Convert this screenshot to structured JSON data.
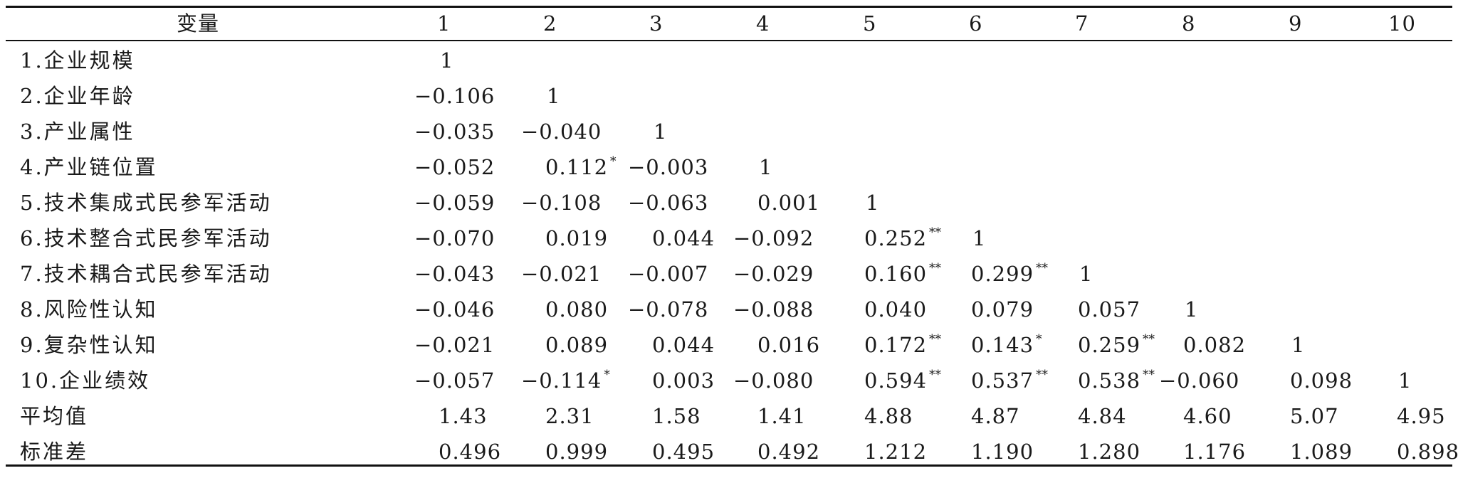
{
  "table": {
    "headers": [
      "变量",
      "1",
      "2",
      "3",
      "4",
      "5",
      "6",
      "7",
      "8",
      "9",
      "10"
    ],
    "rows": [
      {
        "label": "1.企业规模",
        "cells": [
          [
            "1",
            ""
          ]
        ]
      },
      {
        "label": "2.企业年龄",
        "cells": [
          [
            "−0.106",
            ""
          ],
          [
            "1",
            ""
          ]
        ]
      },
      {
        "label": "3.产业属性",
        "cells": [
          [
            "−0.035",
            ""
          ],
          [
            "−0.040",
            ""
          ],
          [
            "1",
            ""
          ]
        ]
      },
      {
        "label": "4.产业链位置",
        "cells": [
          [
            "−0.052",
            ""
          ],
          [
            "0.112",
            "*"
          ],
          [
            "−0.003",
            ""
          ],
          [
            "1",
            ""
          ]
        ]
      },
      {
        "label": "5.技术集成式民参军活动",
        "cells": [
          [
            "−0.059",
            ""
          ],
          [
            "−0.108",
            ""
          ],
          [
            "−0.063",
            ""
          ],
          [
            "0.001",
            ""
          ],
          [
            "1",
            ""
          ]
        ]
      },
      {
        "label": "6.技术整合式民参军活动",
        "cells": [
          [
            "−0.070",
            ""
          ],
          [
            "0.019",
            ""
          ],
          [
            "0.044",
            ""
          ],
          [
            "−0.092",
            ""
          ],
          [
            "0.252",
            "**"
          ],
          [
            "1",
            ""
          ]
        ]
      },
      {
        "label": "7.技术耦合式民参军活动",
        "cells": [
          [
            "−0.043",
            ""
          ],
          [
            "−0.021",
            ""
          ],
          [
            "−0.007",
            ""
          ],
          [
            "−0.029",
            ""
          ],
          [
            "0.160",
            "**"
          ],
          [
            "0.299",
            "**"
          ],
          [
            "1",
            ""
          ]
        ]
      },
      {
        "label": "8.风险性认知",
        "cells": [
          [
            "−0.046",
            ""
          ],
          [
            "0.080",
            ""
          ],
          [
            "−0.078",
            ""
          ],
          [
            "−0.088",
            ""
          ],
          [
            "0.040",
            ""
          ],
          [
            "0.079",
            ""
          ],
          [
            "0.057",
            ""
          ],
          [
            "1",
            ""
          ]
        ]
      },
      {
        "label": "9.复杂性认知",
        "cells": [
          [
            "−0.021",
            ""
          ],
          [
            "0.089",
            ""
          ],
          [
            "0.044",
            ""
          ],
          [
            "0.016",
            ""
          ],
          [
            "0.172",
            "**"
          ],
          [
            "0.143",
            "*"
          ],
          [
            "0.259",
            "**"
          ],
          [
            "0.082",
            ""
          ],
          [
            "1",
            ""
          ]
        ]
      },
      {
        "label": "10.企业绩效",
        "cells": [
          [
            "−0.057",
            ""
          ],
          [
            "−0.114",
            "*"
          ],
          [
            "0.003",
            ""
          ],
          [
            "−0.080",
            ""
          ],
          [
            "0.594",
            "**"
          ],
          [
            "0.537",
            "**"
          ],
          [
            "0.538",
            "**"
          ],
          [
            "−0.060",
            ""
          ],
          [
            "0.098",
            ""
          ],
          [
            "1",
            ""
          ]
        ]
      },
      {
        "label": "平均值",
        "cells": [
          [
            "1.43",
            ""
          ],
          [
            "2.31",
            ""
          ],
          [
            "1.58",
            ""
          ],
          [
            "1.41",
            ""
          ],
          [
            "4.88",
            ""
          ],
          [
            "4.87",
            ""
          ],
          [
            "4.84",
            ""
          ],
          [
            "4.60",
            ""
          ],
          [
            "5.07",
            ""
          ],
          [
            "4.95",
            ""
          ]
        ]
      },
      {
        "label": "标准差",
        "cells": [
          [
            "0.496",
            ""
          ],
          [
            "0.999",
            ""
          ],
          [
            "0.495",
            ""
          ],
          [
            "0.492",
            ""
          ],
          [
            "1.212",
            ""
          ],
          [
            "1.190",
            ""
          ],
          [
            "1.280",
            ""
          ],
          [
            "1.176",
            ""
          ],
          [
            "1.089",
            ""
          ],
          [
            "0.898",
            ""
          ]
        ]
      }
    ]
  }
}
